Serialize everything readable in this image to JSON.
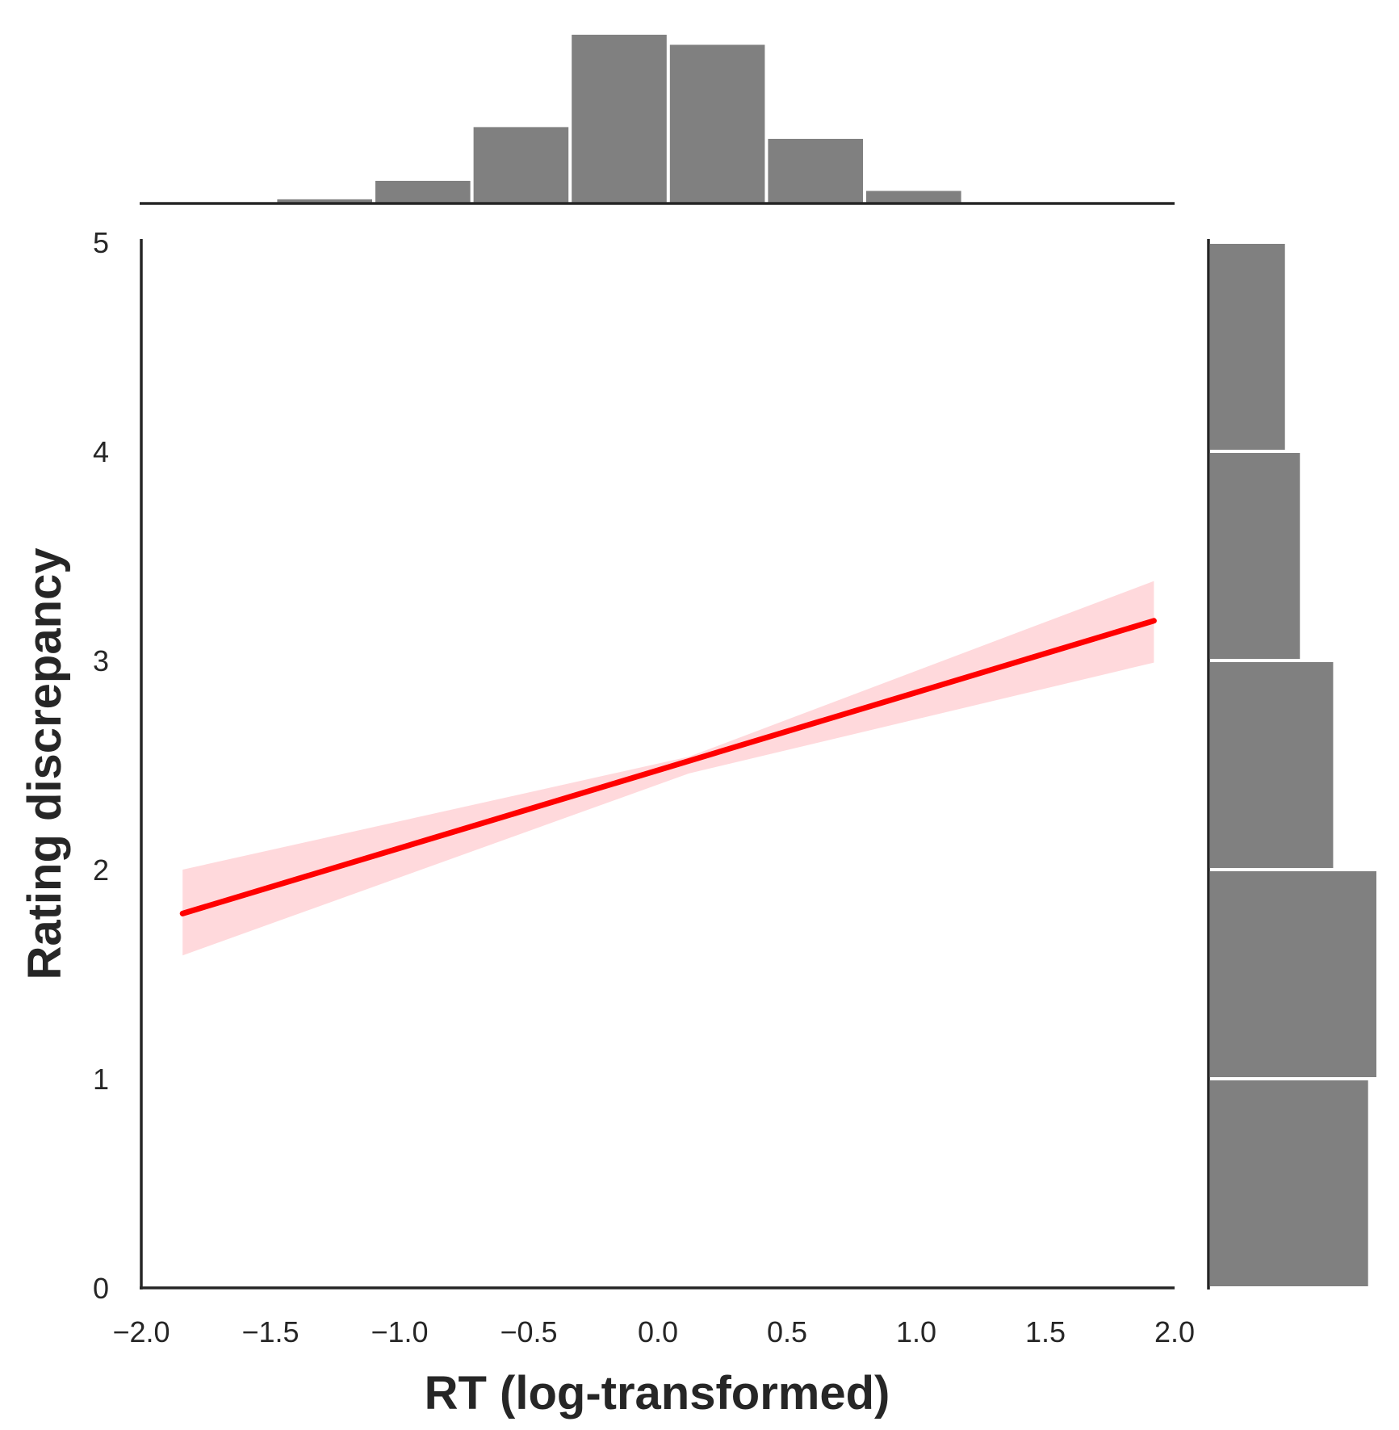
{
  "chart_data": {
    "type": "scatter",
    "xlabel": "RT (log-transformed)",
    "ylabel": "Rating discrepancy",
    "xlim": [
      -2.0,
      2.0
    ],
    "ylim": [
      0,
      5
    ],
    "grid": false,
    "x_ticks": [
      "−2.0",
      "−1.5",
      "−1.0",
      "−0.5",
      "0.0",
      "0.5",
      "1.0",
      "1.5",
      "2.0"
    ],
    "x_tick_values": [
      -2.0,
      -1.5,
      -1.0,
      -0.5,
      0.0,
      0.5,
      1.0,
      1.5,
      2.0
    ],
    "y_ticks": [
      "0",
      "1",
      "2",
      "3",
      "4",
      "5"
    ],
    "y_tick_values": [
      0,
      1,
      2,
      3,
      4,
      5
    ],
    "regression": {
      "x": [
        -1.84,
        1.92
      ],
      "y": [
        1.79,
        3.19
      ],
      "ci_lower": [
        1.59,
        2.99
      ],
      "ci_upper": [
        2.0,
        3.38
      ],
      "ci_mid": {
        "x": 0.12,
        "lower": 2.46,
        "upper": 2.54
      },
      "line_color": "#ff0000",
      "ci_color": "#ffd9dc"
    },
    "marginal_x": {
      "bin_edges": [
        -1.48,
        -1.1,
        -0.72,
        -0.34,
        0.04,
        0.42,
        0.8,
        1.18
      ],
      "counts": [
        0.02,
        0.13,
        0.45,
        1.0,
        0.94,
        0.38,
        0.07
      ],
      "color": "#808080"
    },
    "marginal_y": {
      "bin_edges": [
        0,
        1,
        2,
        3,
        4,
        5
      ],
      "counts": [
        0.95,
        1.0,
        0.74,
        0.54,
        0.45
      ],
      "color": "#808080"
    }
  }
}
